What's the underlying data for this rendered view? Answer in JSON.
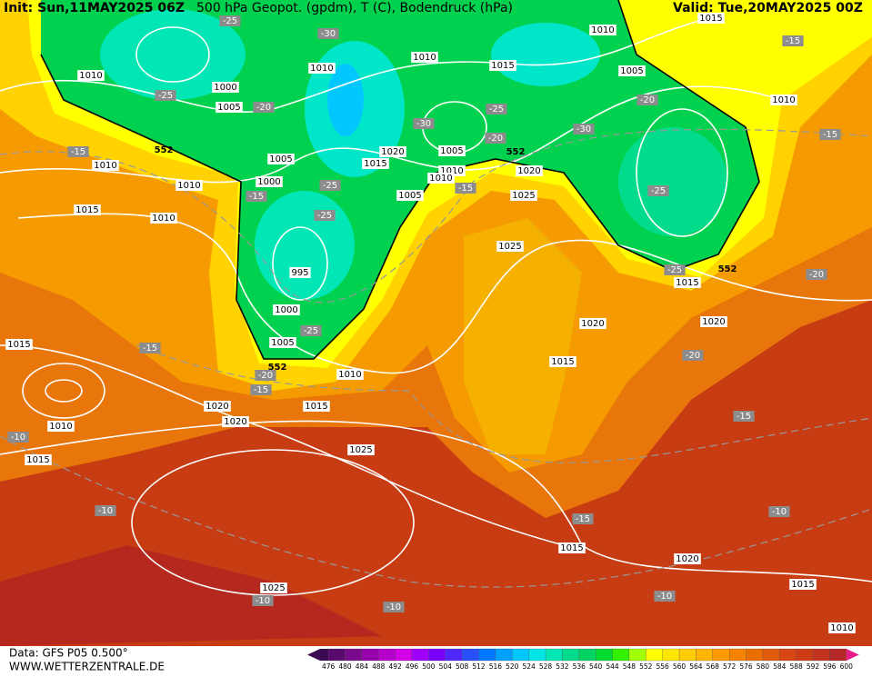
{
  "header": {
    "init": "Init: Sun,11MAY2025 06Z",
    "title": "500 hPa Geopot. (gpdm), T (C), Bodendruck (hPa)",
    "valid": "Valid: Tue,20MAY2025 00Z"
  },
  "footer": {
    "data": "Data: GFS P05 0.500°",
    "site": "WWW.WETTERZENTRALE.DE"
  },
  "legend": {
    "scale": [
      476,
      480,
      484,
      488,
      492,
      496,
      500,
      504,
      508,
      512,
      516,
      520,
      524,
      528,
      532,
      536,
      540,
      544,
      548,
      552,
      556,
      560,
      564,
      568,
      572,
      576,
      580,
      584,
      588,
      592,
      596,
      600
    ],
    "colors": [
      "#3c0a50",
      "#5a0a6e",
      "#7a0a8c",
      "#9600aa",
      "#b400c8",
      "#d200e6",
      "#a000ff",
      "#7800ff",
      "#5028ff",
      "#2850ff",
      "#0078ff",
      "#00a0ff",
      "#00c8ff",
      "#00e6e6",
      "#00e6b4",
      "#00dc8c",
      "#00d264",
      "#00dc32",
      "#32f000",
      "#a0ff00",
      "#ffff00",
      "#ffe600",
      "#ffcd00",
      "#ffb400",
      "#ff9b00",
      "#f58200",
      "#eb6e00",
      "#e15a0a",
      "#d74614",
      "#cd3c14",
      "#c3321e",
      "#b42828",
      "#e61e8c"
    ]
  },
  "map": {
    "isobar_labels": [
      "1010",
      "1000",
      "1005",
      "1010",
      "1010",
      "1010",
      "1015",
      "1005",
      "1010",
      "1010",
      "1010",
      "1000",
      "1005",
      "1020",
      "1015",
      "1005",
      "1010",
      "1010",
      "1020",
      "1025",
      "1005",
      "1015",
      "1010",
      "995",
      "1000",
      "1005",
      "1025",
      "1015",
      "1020",
      "1020",
      "1015",
      "1010",
      "1015",
      "1020",
      "1020",
      "1015",
      "1010",
      "1015",
      "1025",
      "1025",
      "1015",
      "1020",
      "1015",
      "1010",
      "1015"
    ],
    "temperature_labels": [
      "-25",
      "-30",
      "-25",
      "-20",
      "-30",
      "-25",
      "-20",
      "-30",
      "-20",
      "-15",
      "-15",
      "-15",
      "-15",
      "-25",
      "-25",
      "-15",
      "-25",
      "-25",
      "-20",
      "-20",
      "-15",
      "-20",
      "-15",
      "-25",
      "-15",
      "-10",
      "-10",
      "-15",
      "-10",
      "-10",
      "-10",
      "-10"
    ],
    "height_labels": [
      "552",
      "552",
      "552",
      "552"
    ]
  }
}
